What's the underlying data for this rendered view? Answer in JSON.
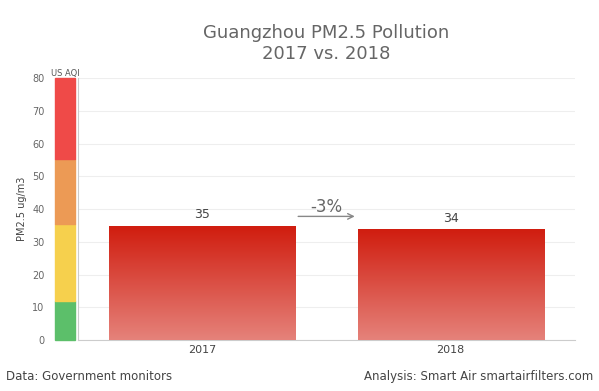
{
  "chart_data": {
    "type": "bar",
    "title": "Guangzhou PM2.5 Pollution\n2017 vs. 2018",
    "categories": [
      "2017",
      "2018"
    ],
    "values": [
      35,
      34
    ],
    "color": "#d01c0e",
    "y_label": "PM2.5 ug/m3",
    "ylim": [
      0,
      80
    ],
    "yticks": [
      0,
      10,
      20,
      30,
      40,
      50,
      60,
      70,
      80
    ],
    "grid": true,
    "data_labels": true,
    "change_label": "-3%",
    "band_label": "US AQI",
    "bands": [
      {
        "from": 0,
        "to": 12,
        "color": "#5cbf6a"
      },
      {
        "from": 12,
        "to": 35.4,
        "color": "#f6d04d"
      },
      {
        "from": 35.4,
        "to": 55.4,
        "color": "#ec9a55"
      },
      {
        "from": 55.4,
        "to": 80,
        "color": "#ef4a48"
      }
    ],
    "source": "Data: Government monitors",
    "credit": "Analysis: Smart Air smartairfilters.com"
  }
}
